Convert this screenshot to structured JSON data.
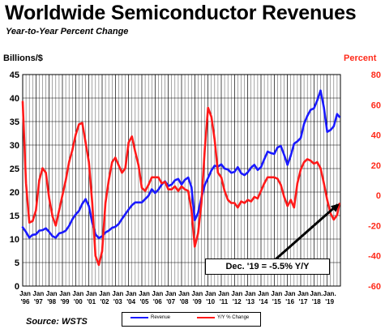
{
  "title": "Worldwide Semiconductor Revenues",
  "subtitle": "Year-to-Year Percent Change",
  "left_axis_title": "Billions/$",
  "right_axis_title": "Percent",
  "source": "Source: WSTS",
  "annotation": "Dec. '19 = -5.5% Y/Y",
  "colors": {
    "revenue": "#1a1aff",
    "yoy": "#ff1a1a",
    "arrow": "#000000",
    "grid": "#000000"
  },
  "chart_data": {
    "type": "line",
    "title": "Worldwide Semiconductor Revenues",
    "subtitle": "Year-to-Year Percent Change",
    "ylabel": "Billions/$",
    "y2label": "Percent",
    "ylim": [
      0,
      45
    ],
    "y2lim": [
      -60,
      80
    ],
    "yticks": [
      "0",
      "5",
      "10",
      "15",
      "20",
      "25",
      "30",
      "35",
      "40",
      "45"
    ],
    "y2ticks": [
      "-60",
      "-40",
      "-20",
      "0",
      "20",
      "40",
      "60",
      "80"
    ],
    "grid": true,
    "legend_position": "bottom",
    "xtick_labels": [
      {
        "top": "Jan",
        "bottom": "'96"
      },
      {
        "top": "Jan",
        "bottom": "'97"
      },
      {
        "top": "Jan",
        "bottom": "'98"
      },
      {
        "top": "Jan",
        "bottom": "'99"
      },
      {
        "top": "Jan",
        "bottom": "'00"
      },
      {
        "top": "Jan",
        "bottom": "'01"
      },
      {
        "top": "Jan",
        "bottom": "'02"
      },
      {
        "top": "Jan",
        "bottom": "'03"
      },
      {
        "top": "Jan",
        "bottom": "'04"
      },
      {
        "top": "Jan",
        "bottom": "'05"
      },
      {
        "top": "Jan",
        "bottom": "'06"
      },
      {
        "top": "Jan",
        "bottom": "'07"
      },
      {
        "top": "Jan",
        "bottom": "'08"
      },
      {
        "top": "Jan",
        "bottom": "'09"
      },
      {
        "top": "Jan",
        "bottom": "'10"
      },
      {
        "top": "Jan",
        "bottom": "'11"
      },
      {
        "top": "Jan",
        "bottom": "'12"
      },
      {
        "top": "Jan",
        "bottom": "'13"
      },
      {
        "top": "Jan",
        "bottom": "'14"
      },
      {
        "top": "Jan",
        "bottom": "'15"
      },
      {
        "top": "Jan",
        "bottom": "'16"
      },
      {
        "top": "Jan",
        "bottom": "'17"
      },
      {
        "top": "Jan.",
        "bottom": "'18"
      },
      {
        "top": "Jan.",
        "bottom": "'19"
      }
    ],
    "x": [
      1996.0,
      1996.25,
      1996.5,
      1996.75,
      1997.0,
      1997.25,
      1997.5,
      1997.75,
      1998.0,
      1998.25,
      1998.5,
      1998.75,
      1999.0,
      1999.25,
      1999.5,
      1999.75,
      2000.0,
      2000.25,
      2000.5,
      2000.75,
      2001.0,
      2001.25,
      2001.5,
      2001.75,
      2002.0,
      2002.25,
      2002.5,
      2002.75,
      2003.0,
      2003.25,
      2003.5,
      2003.75,
      2004.0,
      2004.25,
      2004.5,
      2004.75,
      2005.0,
      2005.25,
      2005.5,
      2005.75,
      2006.0,
      2006.25,
      2006.5,
      2006.75,
      2007.0,
      2007.25,
      2007.5,
      2007.75,
      2008.0,
      2008.25,
      2008.5,
      2008.75,
      2009.0,
      2009.25,
      2009.5,
      2009.75,
      2010.0,
      2010.25,
      2010.5,
      2010.75,
      2011.0,
      2011.25,
      2011.5,
      2011.75,
      2012.0,
      2012.25,
      2012.5,
      2012.75,
      2013.0,
      2013.25,
      2013.5,
      2013.75,
      2014.0,
      2014.25,
      2014.5,
      2014.75,
      2015.0,
      2015.25,
      2015.5,
      2015.75,
      2016.0,
      2016.25,
      2016.5,
      2016.75,
      2017.0,
      2017.25,
      2017.5,
      2017.75,
      2018.0,
      2018.25,
      2018.5,
      2018.75,
      2019.0,
      2019.25,
      2019.5,
      2019.75,
      2019.92
    ],
    "series": [
      {
        "name": "Revenue",
        "axis": "left",
        "color": "#1a1aff",
        "values": [
          12.5,
          11.5,
          10.3,
          10.9,
          11.0,
          11.8,
          11.9,
          12.3,
          11.5,
          10.6,
          10.3,
          11.2,
          11.4,
          11.8,
          12.8,
          14.2,
          15.2,
          16.0,
          17.5,
          18.5,
          17.0,
          13.5,
          11.0,
          10.2,
          10.6,
          11.4,
          11.8,
          12.4,
          12.6,
          13.2,
          14.3,
          15.3,
          16.3,
          17.2,
          17.8,
          17.8,
          17.8,
          18.5,
          19.2,
          20.6,
          19.8,
          20.5,
          21.6,
          22.3,
          21.3,
          21.6,
          22.5,
          22.8,
          21.6,
          22.6,
          23.1,
          21.0,
          14.0,
          15.6,
          18.8,
          21.5,
          23.0,
          24.6,
          25.6,
          25.4,
          25.9,
          25.0,
          24.8,
          24.1,
          24.3,
          25.3,
          24.0,
          23.6,
          24.2,
          25.2,
          25.8,
          24.7,
          25.3,
          27.0,
          28.6,
          28.3,
          28.1,
          29.5,
          29.8,
          27.9,
          25.8,
          27.8,
          30.3,
          30.8,
          31.5,
          34.5,
          36.2,
          37.5,
          37.8,
          39.5,
          41.6,
          38.0,
          32.8,
          33.2,
          34.0,
          36.6,
          36.0
        ]
      },
      {
        "name": "Y/Y % Change",
        "axis": "right",
        "color": "#ff1a1a",
        "values": [
          62,
          8,
          -18,
          -17,
          -10,
          10,
          18,
          15,
          -2,
          -14,
          -20,
          -10,
          0,
          10,
          22,
          30,
          40,
          47,
          48,
          35,
          22,
          -5,
          -40,
          -46,
          -37,
          -5,
          10,
          22,
          25,
          20,
          15,
          18,
          35,
          39,
          29,
          20,
          5,
          3,
          7,
          12,
          12,
          12,
          8,
          9,
          4,
          4,
          6,
          3,
          6,
          4,
          3,
          -10,
          -34,
          -25,
          -5,
          30,
          58,
          52,
          37,
          15,
          12,
          3,
          -3,
          -5,
          -5,
          -8,
          -4,
          -5,
          -3,
          -4,
          -1,
          -2,
          3,
          8,
          12,
          12,
          12,
          11,
          7,
          -1,
          -7,
          -3,
          -8,
          8,
          17,
          22,
          24,
          23,
          21,
          22,
          18,
          8,
          -3,
          -12,
          -16,
          -13,
          -5.5
        ]
      }
    ]
  },
  "legend": {
    "revenue_label": "Revenue",
    "yoy_label": "Y/Y % Change"
  }
}
